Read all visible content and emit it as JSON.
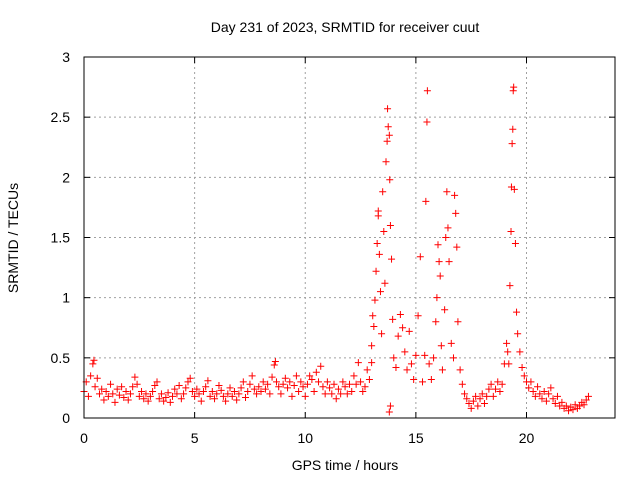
{
  "chart_data": {
    "type": "scatter",
    "title": "Day 231 of 2023, SRMTID for receiver cuut",
    "xlabel": "GPS time / hours",
    "ylabel": "SRMTID / TECUs",
    "xlim": [
      0,
      24
    ],
    "ylim": [
      0,
      3
    ],
    "xticks": [
      0,
      5,
      10,
      15,
      20
    ],
    "xtick_labels": [
      "0",
      "5",
      "10",
      "15",
      "20"
    ],
    "yticks": [
      0,
      0.5,
      1,
      1.5,
      2,
      2.5,
      3
    ],
    "ytick_labels": [
      "0",
      "0.5",
      "1",
      "1.5",
      "2",
      "2.5",
      "3"
    ],
    "grid": true,
    "marker": "+",
    "series": [
      {
        "name": "SRMTID",
        "color": "#ff0000",
        "points": [
          [
            0.0,
            0.22
          ],
          [
            0.1,
            0.3
          ],
          [
            0.2,
            0.18
          ],
          [
            0.3,
            0.35
          ],
          [
            0.4,
            0.45
          ],
          [
            0.45,
            0.48
          ],
          [
            0.5,
            0.26
          ],
          [
            0.6,
            0.33
          ],
          [
            0.7,
            0.2
          ],
          [
            0.8,
            0.24
          ],
          [
            0.9,
            0.15
          ],
          [
            1.0,
            0.22
          ],
          [
            1.1,
            0.18
          ],
          [
            1.2,
            0.28
          ],
          [
            1.3,
            0.2
          ],
          [
            1.4,
            0.13
          ],
          [
            1.5,
            0.24
          ],
          [
            1.6,
            0.19
          ],
          [
            1.7,
            0.26
          ],
          [
            1.8,
            0.17
          ],
          [
            1.9,
            0.22
          ],
          [
            2.0,
            0.15
          ],
          [
            2.1,
            0.2
          ],
          [
            2.2,
            0.26
          ],
          [
            2.3,
            0.34
          ],
          [
            2.4,
            0.28
          ],
          [
            2.5,
            0.18
          ],
          [
            2.6,
            0.22
          ],
          [
            2.7,
            0.16
          ],
          [
            2.8,
            0.2
          ],
          [
            2.9,
            0.14
          ],
          [
            3.0,
            0.18
          ],
          [
            3.1,
            0.22
          ],
          [
            3.2,
            0.27
          ],
          [
            3.3,
            0.3
          ],
          [
            3.4,
            0.16
          ],
          [
            3.5,
            0.2
          ],
          [
            3.6,
            0.14
          ],
          [
            3.7,
            0.17
          ],
          [
            3.8,
            0.21
          ],
          [
            3.9,
            0.13
          ],
          [
            4.0,
            0.18
          ],
          [
            4.1,
            0.24
          ],
          [
            4.2,
            0.2
          ],
          [
            4.3,
            0.27
          ],
          [
            4.4,
            0.16
          ],
          [
            4.5,
            0.2
          ],
          [
            4.6,
            0.25
          ],
          [
            4.7,
            0.3
          ],
          [
            4.8,
            0.33
          ],
          [
            4.9,
            0.22
          ],
          [
            5.0,
            0.18
          ],
          [
            5.1,
            0.24
          ],
          [
            5.2,
            0.2
          ],
          [
            5.3,
            0.14
          ],
          [
            5.4,
            0.22
          ],
          [
            5.5,
            0.26
          ],
          [
            5.6,
            0.31
          ],
          [
            5.7,
            0.18
          ],
          [
            5.8,
            0.22
          ],
          [
            5.9,
            0.16
          ],
          [
            6.0,
            0.2
          ],
          [
            6.1,
            0.27
          ],
          [
            6.2,
            0.23
          ],
          [
            6.3,
            0.18
          ],
          [
            6.4,
            0.14
          ],
          [
            6.5,
            0.2
          ],
          [
            6.6,
            0.25
          ],
          [
            6.7,
            0.18
          ],
          [
            6.8,
            0.22
          ],
          [
            6.9,
            0.15
          ],
          [
            7.0,
            0.2
          ],
          [
            7.1,
            0.25
          ],
          [
            7.2,
            0.3
          ],
          [
            7.3,
            0.17
          ],
          [
            7.4,
            0.22
          ],
          [
            7.5,
            0.28
          ],
          [
            7.6,
            0.35
          ],
          [
            7.7,
            0.24
          ],
          [
            7.8,
            0.2
          ],
          [
            7.9,
            0.26
          ],
          [
            8.0,
            0.22
          ],
          [
            8.1,
            0.3
          ],
          [
            8.2,
            0.24
          ],
          [
            8.3,
            0.28
          ],
          [
            8.4,
            0.2
          ],
          [
            8.5,
            0.34
          ],
          [
            8.6,
            0.44
          ],
          [
            8.65,
            0.47
          ],
          [
            8.7,
            0.3
          ],
          [
            8.8,
            0.26
          ],
          [
            8.9,
            0.2
          ],
          [
            9.0,
            0.28
          ],
          [
            9.1,
            0.33
          ],
          [
            9.2,
            0.25
          ],
          [
            9.3,
            0.3
          ],
          [
            9.4,
            0.18
          ],
          [
            9.5,
            0.27
          ],
          [
            9.6,
            0.35
          ],
          [
            9.7,
            0.22
          ],
          [
            9.8,
            0.3
          ],
          [
            9.9,
            0.26
          ],
          [
            10.0,
            0.18
          ],
          [
            10.1,
            0.28
          ],
          [
            10.2,
            0.35
          ],
          [
            10.3,
            0.32
          ],
          [
            10.4,
            0.22
          ],
          [
            10.5,
            0.38
          ],
          [
            10.6,
            0.3
          ],
          [
            10.7,
            0.43
          ],
          [
            10.8,
            0.26
          ],
          [
            10.9,
            0.2
          ],
          [
            11.0,
            0.3
          ],
          [
            11.1,
            0.25
          ],
          [
            11.2,
            0.2
          ],
          [
            11.3,
            0.28
          ],
          [
            11.4,
            0.16
          ],
          [
            11.5,
            0.24
          ],
          [
            11.6,
            0.2
          ],
          [
            11.7,
            0.3
          ],
          [
            11.8,
            0.26
          ],
          [
            11.9,
            0.2
          ],
          [
            12.0,
            0.28
          ],
          [
            12.1,
            0.22
          ],
          [
            12.2,
            0.35
          ],
          [
            12.3,
            0.28
          ],
          [
            12.4,
            0.46
          ],
          [
            12.5,
            0.3
          ],
          [
            12.6,
            0.22
          ],
          [
            12.7,
            0.26
          ],
          [
            12.8,
            0.4
          ],
          [
            12.9,
            0.32
          ],
          [
            13.0,
            0.46
          ],
          [
            13.0,
            0.6
          ],
          [
            13.05,
            0.85
          ],
          [
            13.1,
            0.76
          ],
          [
            13.15,
            0.98
          ],
          [
            13.2,
            1.22
          ],
          [
            13.25,
            1.45
          ],
          [
            13.3,
            1.72
          ],
          [
            13.3,
            1.68
          ],
          [
            13.35,
            1.36
          ],
          [
            13.4,
            1.05
          ],
          [
            13.45,
            0.7
          ],
          [
            13.5,
            1.88
          ],
          [
            13.55,
            1.55
          ],
          [
            13.6,
            1.12
          ],
          [
            13.65,
            2.13
          ],
          [
            13.7,
            2.3
          ],
          [
            13.72,
            2.57
          ],
          [
            13.75,
            2.42
          ],
          [
            13.8,
            2.35
          ],
          [
            13.82,
            1.98
          ],
          [
            13.85,
            1.6
          ],
          [
            13.9,
            1.32
          ],
          [
            13.95,
            0.82
          ],
          [
            14.0,
            0.5
          ],
          [
            13.8,
            0.05
          ],
          [
            13.85,
            0.1
          ],
          [
            14.1,
            0.42
          ],
          [
            14.2,
            0.68
          ],
          [
            14.3,
            0.86
          ],
          [
            14.4,
            0.75
          ],
          [
            14.5,
            0.55
          ],
          [
            14.6,
            0.4
          ],
          [
            14.7,
            0.72
          ],
          [
            14.8,
            0.45
          ],
          [
            14.9,
            0.32
          ],
          [
            15.0,
            0.52
          ],
          [
            15.1,
            0.85
          ],
          [
            15.2,
            1.34
          ],
          [
            15.3,
            0.3
          ],
          [
            15.4,
            0.52
          ],
          [
            15.45,
            1.8
          ],
          [
            15.5,
            2.46
          ],
          [
            15.52,
            2.72
          ],
          [
            15.6,
            0.45
          ],
          [
            15.7,
            0.32
          ],
          [
            15.8,
            0.5
          ],
          [
            15.9,
            0.8
          ],
          [
            15.95,
            1.0
          ],
          [
            16.0,
            1.44
          ],
          [
            16.05,
            1.3
          ],
          [
            16.1,
            1.18
          ],
          [
            16.15,
            0.6
          ],
          [
            16.2,
            0.4
          ],
          [
            16.3,
            0.9
          ],
          [
            16.35,
            1.5
          ],
          [
            16.4,
            1.88
          ],
          [
            16.45,
            1.58
          ],
          [
            16.5,
            1.3
          ],
          [
            16.6,
            0.62
          ],
          [
            16.7,
            0.5
          ],
          [
            16.75,
            1.85
          ],
          [
            16.8,
            1.7
          ],
          [
            16.85,
            1.42
          ],
          [
            16.9,
            0.8
          ],
          [
            17.0,
            0.4
          ],
          [
            17.1,
            0.28
          ],
          [
            17.2,
            0.2
          ],
          [
            17.3,
            0.16
          ],
          [
            17.4,
            0.12
          ],
          [
            17.5,
            0.08
          ],
          [
            17.6,
            0.14
          ],
          [
            17.7,
            0.18
          ],
          [
            17.8,
            0.1
          ],
          [
            17.9,
            0.16
          ],
          [
            18.0,
            0.2
          ],
          [
            18.1,
            0.12
          ],
          [
            18.2,
            0.18
          ],
          [
            18.3,
            0.24
          ],
          [
            18.4,
            0.28
          ],
          [
            18.5,
            0.18
          ],
          [
            18.6,
            0.24
          ],
          [
            18.7,
            0.3
          ],
          [
            18.8,
            0.22
          ],
          [
            18.9,
            0.28
          ],
          [
            19.0,
            0.45
          ],
          [
            19.1,
            0.62
          ],
          [
            19.15,
            0.55
          ],
          [
            19.2,
            0.45
          ],
          [
            19.25,
            1.1
          ],
          [
            19.3,
            1.55
          ],
          [
            19.32,
            1.92
          ],
          [
            19.35,
            2.28
          ],
          [
            19.38,
            2.4
          ],
          [
            19.4,
            2.72
          ],
          [
            19.42,
            2.75
          ],
          [
            19.45,
            1.9
          ],
          [
            19.5,
            1.45
          ],
          [
            19.55,
            0.88
          ],
          [
            19.6,
            0.7
          ],
          [
            19.7,
            0.55
          ],
          [
            19.8,
            0.42
          ],
          [
            19.9,
            0.35
          ],
          [
            20.0,
            0.3
          ],
          [
            20.1,
            0.25
          ],
          [
            20.2,
            0.3
          ],
          [
            20.3,
            0.22
          ],
          [
            20.4,
            0.18
          ],
          [
            20.5,
            0.26
          ],
          [
            20.6,
            0.2
          ],
          [
            20.7,
            0.16
          ],
          [
            20.8,
            0.22
          ],
          [
            20.9,
            0.14
          ],
          [
            21.0,
            0.2
          ],
          [
            21.1,
            0.25
          ],
          [
            21.2,
            0.16
          ],
          [
            21.3,
            0.12
          ],
          [
            21.4,
            0.18
          ],
          [
            21.5,
            0.1
          ],
          [
            21.6,
            0.13
          ],
          [
            21.7,
            0.08
          ],
          [
            21.8,
            0.1
          ],
          [
            21.9,
            0.06
          ],
          [
            22.0,
            0.09
          ],
          [
            22.1,
            0.07
          ],
          [
            22.2,
            0.11
          ],
          [
            22.3,
            0.08
          ],
          [
            22.4,
            0.1
          ],
          [
            22.5,
            0.13
          ],
          [
            22.6,
            0.11
          ],
          [
            22.7,
            0.15
          ],
          [
            22.8,
            0.18
          ]
        ]
      }
    ]
  }
}
